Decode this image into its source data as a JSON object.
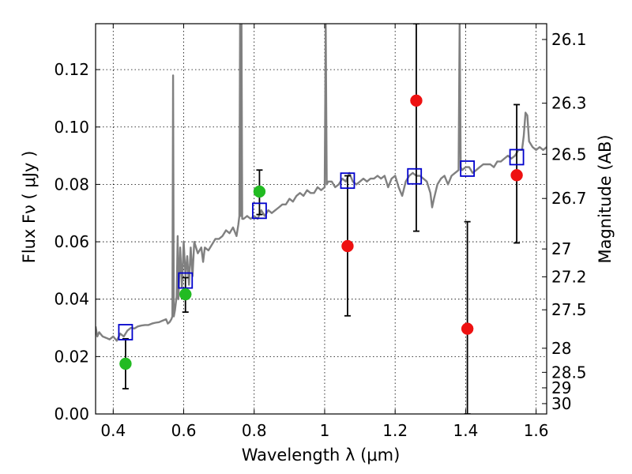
{
  "chart_data": {
    "type": "scatter",
    "xlabel": "Wavelength  λ (μm)",
    "ylabel": "Flux  Fν  ( μJy )",
    "ylabel_right": "Magnitude (AB)",
    "xlim": [
      0.35,
      1.63
    ],
    "ylim": [
      0.0,
      0.136
    ],
    "grid": true,
    "x_ticks": [
      0.4,
      0.6,
      0.8,
      1.0,
      1.2,
      1.4,
      1.6
    ],
    "x_tick_labels": [
      "0.4",
      "0.6",
      "0.8",
      "1",
      "1.2",
      "1.4",
      "1.6"
    ],
    "y_ticks": [
      0.0,
      0.02,
      0.04,
      0.06,
      0.08,
      0.1,
      0.12
    ],
    "y_tick_labels": [
      "0.00",
      "0.02",
      "0.04",
      "0.06",
      "0.08",
      "0.10",
      "0.12"
    ],
    "right_ticks": [
      {
        "label": "26.1",
        "flux": 0.1305
      },
      {
        "label": "26.3",
        "flux": 0.1083
      },
      {
        "label": "26.5",
        "flux": 0.0905
      },
      {
        "label": "26.7",
        "flux": 0.0751
      },
      {
        "label": "27",
        "flux": 0.0575
      },
      {
        "label": "27.2",
        "flux": 0.0478
      },
      {
        "label": "27.5",
        "flux": 0.0363
      },
      {
        "label": "28",
        "flux": 0.0229
      },
      {
        "label": "28.5",
        "flux": 0.0145
      },
      {
        "label": "29",
        "flux": 0.0091
      },
      {
        "label": "30",
        "flux": 0.0036
      }
    ],
    "series": [
      {
        "kind": "model-spectrum",
        "color": "#808080",
        "points": [
          [
            0.35,
            0.0305
          ],
          [
            0.355,
            0.027
          ],
          [
            0.36,
            0.0285
          ],
          [
            0.37,
            0.027
          ],
          [
            0.38,
            0.0265
          ],
          [
            0.39,
            0.026
          ],
          [
            0.4,
            0.027
          ],
          [
            0.41,
            0.0255
          ],
          [
            0.42,
            0.028
          ],
          [
            0.43,
            0.027
          ],
          [
            0.44,
            0.029
          ],
          [
            0.45,
            0.03
          ],
          [
            0.46,
            0.0298
          ],
          [
            0.47,
            0.0305
          ],
          [
            0.48,
            0.0308
          ],
          [
            0.49,
            0.031
          ],
          [
            0.5,
            0.031
          ],
          [
            0.51,
            0.0315
          ],
          [
            0.52,
            0.0318
          ],
          [
            0.53,
            0.032
          ],
          [
            0.54,
            0.0325
          ],
          [
            0.55,
            0.033
          ],
          [
            0.555,
            0.0315
          ],
          [
            0.56,
            0.032
          ],
          [
            0.565,
            0.033
          ],
          [
            0.568,
            0.034
          ],
          [
            0.57,
            0.118
          ],
          [
            0.572,
            0.034
          ],
          [
            0.575,
            0.036
          ],
          [
            0.58,
            0.041
          ],
          [
            0.583,
            0.062
          ],
          [
            0.585,
            0.04
          ],
          [
            0.59,
            0.058
          ],
          [
            0.595,
            0.044
          ],
          [
            0.6,
            0.06
          ],
          [
            0.605,
            0.048
          ],
          [
            0.61,
            0.055
          ],
          [
            0.615,
            0.045
          ],
          [
            0.62,
            0.058
          ],
          [
            0.625,
            0.048
          ],
          [
            0.63,
            0.06
          ],
          [
            0.64,
            0.056
          ],
          [
            0.65,
            0.058
          ],
          [
            0.655,
            0.053
          ],
          [
            0.66,
            0.058
          ],
          [
            0.67,
            0.057
          ],
          [
            0.68,
            0.059
          ],
          [
            0.69,
            0.061
          ],
          [
            0.7,
            0.061
          ],
          [
            0.71,
            0.062
          ],
          [
            0.72,
            0.064
          ],
          [
            0.73,
            0.063
          ],
          [
            0.74,
            0.065
          ],
          [
            0.75,
            0.062
          ],
          [
            0.755,
            0.066
          ],
          [
            0.758,
            0.069
          ],
          [
            0.76,
            0.136
          ],
          [
            0.762,
            0.069
          ],
          [
            0.764,
            0.136
          ],
          [
            0.766,
            0.068
          ],
          [
            0.77,
            0.068
          ],
          [
            0.78,
            0.069
          ],
          [
            0.79,
            0.068
          ],
          [
            0.8,
            0.069
          ],
          [
            0.81,
            0.068
          ],
          [
            0.82,
            0.071
          ],
          [
            0.83,
            0.069
          ],
          [
            0.84,
            0.071
          ],
          [
            0.85,
            0.07
          ],
          [
            0.86,
            0.071
          ],
          [
            0.87,
            0.072
          ],
          [
            0.88,
            0.073
          ],
          [
            0.89,
            0.073
          ],
          [
            0.9,
            0.075
          ],
          [
            0.91,
            0.074
          ],
          [
            0.92,
            0.076
          ],
          [
            0.93,
            0.077
          ],
          [
            0.94,
            0.076
          ],
          [
            0.95,
            0.078
          ],
          [
            0.96,
            0.077
          ],
          [
            0.97,
            0.077
          ],
          [
            0.98,
            0.079
          ],
          [
            0.99,
            0.078
          ],
          [
            1.0,
            0.079
          ],
          [
            1.003,
            0.136
          ],
          [
            1.006,
            0.08
          ],
          [
            1.01,
            0.081
          ],
          [
            1.02,
            0.081
          ],
          [
            1.03,
            0.079
          ],
          [
            1.04,
            0.08
          ],
          [
            1.05,
            0.082
          ],
          [
            1.06,
            0.081
          ],
          [
            1.07,
            0.084
          ],
          [
            1.08,
            0.081
          ],
          [
            1.09,
            0.08
          ],
          [
            1.1,
            0.081
          ],
          [
            1.11,
            0.082
          ],
          [
            1.12,
            0.081
          ],
          [
            1.13,
            0.082
          ],
          [
            1.14,
            0.082
          ],
          [
            1.15,
            0.083
          ],
          [
            1.16,
            0.082
          ],
          [
            1.17,
            0.083
          ],
          [
            1.18,
            0.079
          ],
          [
            1.19,
            0.082
          ],
          [
            1.2,
            0.083
          ],
          [
            1.21,
            0.079
          ],
          [
            1.22,
            0.076
          ],
          [
            1.23,
            0.081
          ],
          [
            1.24,
            0.083
          ],
          [
            1.25,
            0.084
          ],
          [
            1.26,
            0.083
          ],
          [
            1.27,
            0.083
          ],
          [
            1.28,
            0.082
          ],
          [
            1.29,
            0.081
          ],
          [
            1.3,
            0.077
          ],
          [
            1.305,
            0.072
          ],
          [
            1.31,
            0.075
          ],
          [
            1.32,
            0.08
          ],
          [
            1.33,
            0.082
          ],
          [
            1.34,
            0.083
          ],
          [
            1.35,
            0.08
          ],
          [
            1.36,
            0.083
          ],
          [
            1.37,
            0.084
          ],
          [
            1.38,
            0.085
          ],
          [
            1.383,
            0.136
          ],
          [
            1.386,
            0.086
          ],
          [
            1.39,
            0.085
          ],
          [
            1.4,
            0.086
          ],
          [
            1.41,
            0.086
          ],
          [
            1.42,
            0.084
          ],
          [
            1.43,
            0.085
          ],
          [
            1.44,
            0.086
          ],
          [
            1.45,
            0.087
          ],
          [
            1.46,
            0.087
          ],
          [
            1.47,
            0.087
          ],
          [
            1.48,
            0.086
          ],
          [
            1.49,
            0.088
          ],
          [
            1.5,
            0.088
          ],
          [
            1.51,
            0.089
          ],
          [
            1.52,
            0.09
          ],
          [
            1.53,
            0.089
          ],
          [
            1.54,
            0.09
          ],
          [
            1.55,
            0.092
          ],
          [
            1.56,
            0.092
          ],
          [
            1.565,
            0.097
          ],
          [
            1.57,
            0.105
          ],
          [
            1.575,
            0.104
          ],
          [
            1.58,
            0.095
          ],
          [
            1.59,
            0.093
          ],
          [
            1.6,
            0.092
          ],
          [
            1.61,
            0.093
          ],
          [
            1.62,
            0.092
          ],
          [
            1.63,
            0.093
          ]
        ]
      },
      {
        "kind": "model-photometry",
        "marker": "open-square",
        "color": "#0000cc",
        "x": [
          0.435,
          0.605,
          0.815,
          1.065,
          1.255,
          1.405,
          1.545
        ],
        "y": [
          0.0285,
          0.0465,
          0.0708,
          0.0813,
          0.0828,
          0.0855,
          0.0895
        ]
      },
      {
        "kind": "observed",
        "marker": "filled-circle",
        "color": "#22bb22",
        "x": [
          0.435,
          0.605,
          0.815
        ],
        "y": [
          0.0175,
          0.0417,
          0.0775
        ],
        "yerr_lo": [
          0.0088,
          0.0355,
          0.0695
        ],
        "yerr_hi": [
          0.0262,
          0.0475,
          0.085
        ]
      },
      {
        "kind": "observed",
        "marker": "filled-circle",
        "color": "#ee1111",
        "x": [
          1.065,
          1.26,
          1.405,
          1.545
        ],
        "y": [
          0.0585,
          0.1092,
          0.0297,
          0.0832
        ],
        "yerr_lo": [
          0.0342,
          0.0637,
          0.0,
          0.0596
        ],
        "yerr_hi": [
          0.083,
          0.136,
          0.067,
          0.1078
        ]
      }
    ]
  }
}
